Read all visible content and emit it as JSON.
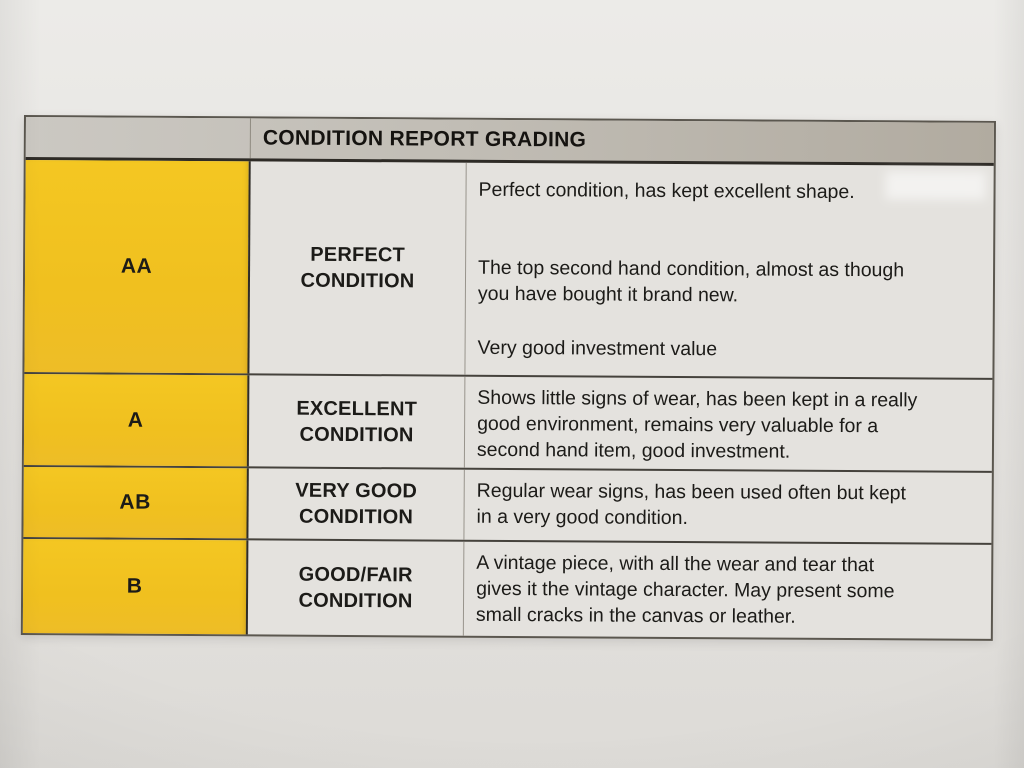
{
  "grading_table": {
    "title": "CONDITION REPORT GRADING",
    "rows": [
      {
        "grade": "AA",
        "condition_lines": [
          "PERFECT",
          "CONDITION"
        ],
        "description": [
          "Perfect condition, has kept excellent shape.",
          "The top second hand condition, almost as though\nyou have bought it brand new.",
          "Very good investment value"
        ]
      },
      {
        "grade": "A",
        "condition_lines": [
          "EXCELLENT",
          "CONDITION"
        ],
        "description": [
          "Shows little signs of wear, has been kept in a really\ngood environment, remains very valuable for a\nsecond hand item, good investment."
        ]
      },
      {
        "grade": "AB",
        "condition_lines": [
          "VERY GOOD",
          "CONDITION"
        ],
        "description": [
          "Regular wear signs, has been used often but kept\nin a very good condition."
        ]
      },
      {
        "grade": "B",
        "condition_lines": [
          "GOOD/FAIR",
          "CONDITION"
        ],
        "description": [
          "A vintage piece, with all the wear and tear that\ngives it the vintage character. May present some\nsmall cracks in the canvas or leather."
        ]
      }
    ],
    "colors": {
      "grade_column_bg": "#f1c220",
      "header_bar_bg": "#c1bdb5",
      "cell_bg": "#e4e2de",
      "text": "#1c1b18",
      "paper_bg": "#e7e5e2"
    }
  }
}
